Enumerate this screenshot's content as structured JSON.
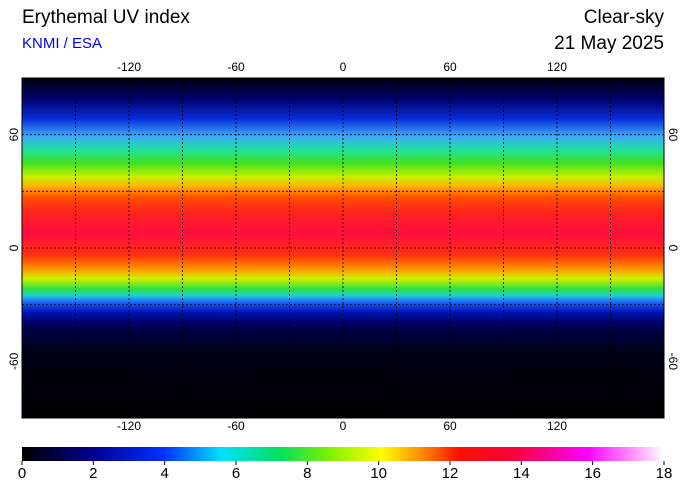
{
  "header": {
    "title": "Erythemal UV index",
    "source": "KNMI / ESA",
    "mode": "Clear-sky",
    "date": "21 May 2025"
  },
  "map": {
    "xlim": [
      -180,
      180
    ],
    "ylim": [
      -90,
      90
    ],
    "xticks": [
      -120,
      -60,
      0,
      60,
      120
    ],
    "yticks": [
      -60,
      0,
      60
    ],
    "grid": true
  },
  "colorbar": {
    "lim": [
      0,
      18
    ],
    "ticks": [
      0,
      2,
      4,
      6,
      8,
      10,
      12,
      14,
      16,
      18
    ]
  }
}
